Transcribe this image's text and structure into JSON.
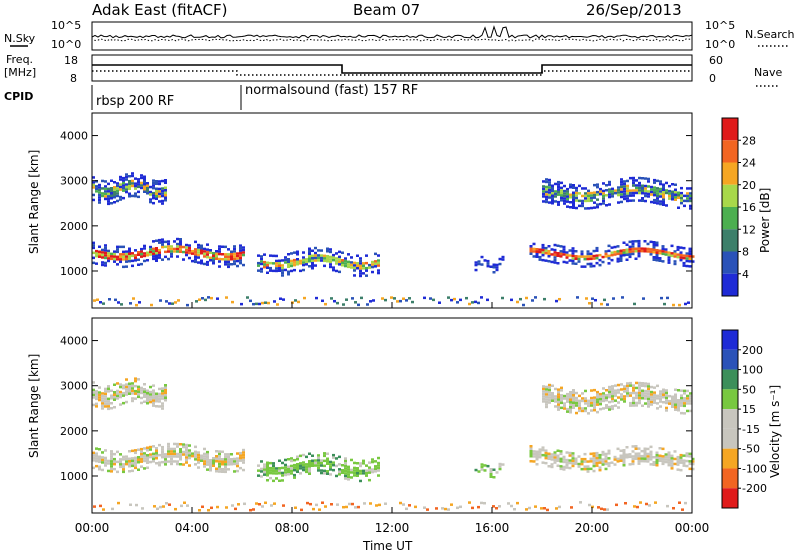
{
  "header": {
    "station": "Adak East (fitACF)",
    "beam": "Beam 07",
    "date": "26/Sep/2013"
  },
  "summary_panels": {
    "nsky_label": "N.Sky",
    "nsearch_label": "N.Search",
    "freq_label_line1": "Freq.",
    "freq_label_line2": "[MHz]",
    "nave_label": "Nave",
    "cpid_label": "CPID",
    "noise_ticks_left": [
      "10^5",
      "10^0"
    ],
    "noise_ticks_right": [
      "10^5",
      "10^0"
    ],
    "freq_ticks": [
      "18",
      "8"
    ],
    "nave_ticks": [
      "60",
      "0"
    ]
  },
  "cpid_segments": [
    {
      "label": "rbsp 200 RF",
      "start_h": 0,
      "end_h": 6
    },
    {
      "label": "normalsound (fast) 157 RF",
      "start_h": 6,
      "end_h": 24
    }
  ],
  "colors": {
    "power": [
      "#1f2bd6",
      "#2a52b8",
      "#3c7f6a",
      "#4caf50",
      "#a8d84a",
      "#f5a623",
      "#f26522",
      "#e01b1b"
    ],
    "velocity": [
      "#e01b1b",
      "#f26522",
      "#f5a623",
      "#c8c6be",
      "#c8c6be",
      "#78c840",
      "#3c8f5a",
      "#2a52b8",
      "#1f2bd6"
    ]
  },
  "chart_data": [
    {
      "type": "heatmap",
      "quantity": "power",
      "ylabel": "Slant Range [km]",
      "xlabel": "",
      "xlim_hours": [
        0,
        24
      ],
      "ylim_km": [
        180,
        4500
      ],
      "yticks": [
        "1000",
        "2000",
        "3000",
        "4000"
      ],
      "colorbar_label": "Power [dB]",
      "colorbar_ticks": [
        "4",
        "8",
        "12",
        "16",
        "20",
        "24",
        "28"
      ],
      "features": [
        {
          "start_h": 0.0,
          "end_h": 6.1,
          "range_km": [
            1200,
            1650
          ],
          "level": "high"
        },
        {
          "start_h": 0.0,
          "end_h": 3.0,
          "range_km": [
            2600,
            3100
          ],
          "level": "medium"
        },
        {
          "start_h": 6.6,
          "end_h": 11.5,
          "range_km": [
            1000,
            1450
          ],
          "level": "medium-high"
        },
        {
          "start_h": 15.3,
          "end_h": 16.5,
          "range_km": [
            1050,
            1250
          ],
          "level": "medium"
        },
        {
          "start_h": 17.5,
          "end_h": 24.0,
          "range_km": [
            1200,
            1600
          ],
          "level": "high"
        },
        {
          "start_h": 18.0,
          "end_h": 24.0,
          "range_km": [
            2500,
            3000
          ],
          "level": "medium"
        }
      ]
    },
    {
      "type": "heatmap",
      "quantity": "velocity",
      "ylabel": "Slant Range [km]",
      "xlabel": "Time UT",
      "xlim_hours": [
        0,
        24
      ],
      "ylim_km": [
        180,
        4500
      ],
      "xticks": [
        "00:00",
        "04:00",
        "08:00",
        "12:00",
        "16:00",
        "20:00",
        "00:00"
      ],
      "yticks": [
        "1000",
        "2000",
        "3000",
        "4000"
      ],
      "colorbar_label": "Velocity [m s⁻¹]",
      "colorbar_ticks": [
        "200",
        "100",
        "50",
        "15",
        "-15",
        "-50",
        "-100",
        "-200"
      ],
      "features": [
        {
          "start_h": 0.0,
          "end_h": 6.1,
          "range_km": [
            1200,
            1650
          ],
          "velocity": "near zero"
        },
        {
          "start_h": 6.6,
          "end_h": 11.5,
          "range_km": [
            1000,
            1450
          ],
          "velocity": "+50 to +100"
        },
        {
          "start_h": 15.3,
          "end_h": 16.5,
          "range_km": [
            1050,
            1250
          ],
          "velocity": "+50 to +100"
        },
        {
          "start_h": 17.5,
          "end_h": 24.0,
          "range_km": [
            1200,
            1600
          ],
          "velocity": "near zero"
        }
      ]
    }
  ]
}
